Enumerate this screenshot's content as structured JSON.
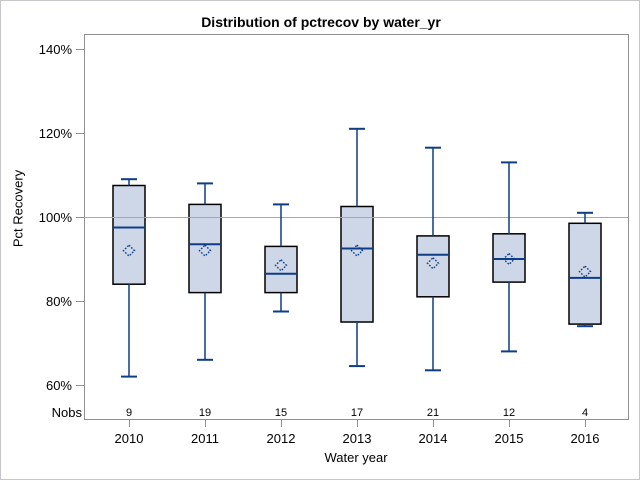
{
  "chart_data": {
    "type": "box",
    "title": "Distribution of pctrecov by water_yr",
    "xlabel": "Water year",
    "ylabel": "Pct Recovery",
    "nobs_label": "Nobs",
    "categories": [
      "2010",
      "2011",
      "2012",
      "2013",
      "2014",
      "2015",
      "2016"
    ],
    "nobs": [
      9,
      19,
      15,
      17,
      21,
      12,
      4
    ],
    "yticks": [
      60,
      80,
      100,
      120,
      140
    ],
    "ytick_suffix": "%",
    "ylim": [
      52,
      144
    ],
    "reference_line_y": 100,
    "grid": false,
    "legend": "none",
    "boxes": [
      {
        "category": "2010",
        "whisker_low": 62,
        "q1": 84,
        "median": 97.5,
        "mean": 92,
        "q3": 107.5,
        "whisker_high": 109
      },
      {
        "category": "2011",
        "whisker_low": 66,
        "q1": 82,
        "median": 93.5,
        "mean": 92,
        "q3": 103,
        "whisker_high": 108
      },
      {
        "category": "2012",
        "whisker_low": 77.5,
        "q1": 82,
        "median": 86.5,
        "mean": 88.5,
        "q3": 93,
        "whisker_high": 103
      },
      {
        "category": "2013",
        "whisker_low": 64.5,
        "q1": 75,
        "median": 92.5,
        "mean": 92,
        "q3": 102.5,
        "whisker_high": 121
      },
      {
        "category": "2014",
        "whisker_low": 63.5,
        "q1": 81,
        "median": 91,
        "mean": 89,
        "q3": 95.5,
        "whisker_high": 116.5
      },
      {
        "category": "2015",
        "whisker_low": 68,
        "q1": 84.5,
        "median": 90,
        "mean": 90,
        "q3": 96,
        "whisker_high": 113
      },
      {
        "category": "2016",
        "whisker_low": 74,
        "q1": 74.5,
        "median": 85.5,
        "mean": 87,
        "q3": 98.5,
        "whisker_high": 101
      }
    ]
  },
  "colors": {
    "box_fill": "#cdd7e8",
    "box_border": "#000000",
    "line": "#0e3d85",
    "reference_line": "#a8a8a8",
    "frame": "#8f8f8f",
    "outer_border": "#c6c6ca",
    "text": "#000000",
    "background": "#ffffff"
  }
}
